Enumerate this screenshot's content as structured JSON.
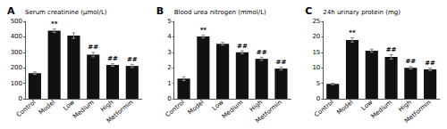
{
  "chart_data": [
    {
      "type": "bar",
      "title": "A",
      "ylabel": "Serum creatinine (μmol/L)",
      "categories": [
        "Control",
        "Model",
        "Low",
        "Medium",
        "High",
        "Metformin"
      ],
      "values": [
        165,
        440,
        408,
        285,
        218,
        212
      ],
      "errors": [
        8,
        12,
        18,
        14,
        8,
        10
      ],
      "annotations": [
        null,
        "**",
        null,
        "##",
        "##",
        "##"
      ],
      "color": "#111111",
      "ylim": [
        0,
        500
      ],
      "yticks": [
        0,
        100,
        200,
        300,
        400,
        500
      ],
      "grid": false
    },
    {
      "type": "bar",
      "title": "B",
      "ylabel": "Blood urea nitrogen (mmol/L)",
      "categories": [
        "Control",
        "Model",
        "Low",
        "Medium",
        "High",
        "Metformin"
      ],
      "values": [
        1.3,
        4.02,
        3.55,
        3.0,
        2.58,
        1.95
      ],
      "errors": [
        0.12,
        0.1,
        0.09,
        0.1,
        0.1,
        0.1
      ],
      "annotations": [
        null,
        "**",
        null,
        "##",
        "##",
        "##"
      ],
      "color": "#111111",
      "ylim": [
        0,
        5
      ],
      "yticks": [
        0,
        1,
        2,
        3,
        4,
        5
      ],
      "grid": false
    },
    {
      "type": "bar",
      "title": "C",
      "ylabel": "24h urinary protein (mg)",
      "categories": [
        "Control",
        "Model",
        "Low",
        "Medium",
        "High",
        "Metformin"
      ],
      "values": [
        4.8,
        19.0,
        15.5,
        13.5,
        10.0,
        9.5
      ],
      "errors": [
        0.25,
        0.7,
        0.5,
        0.7,
        0.4,
        0.4
      ],
      "annotations": [
        null,
        "**",
        null,
        "##",
        "##",
        "##"
      ],
      "color": "#111111",
      "ylim": [
        0,
        25
      ],
      "yticks": [
        0,
        5,
        10,
        15,
        20,
        25
      ],
      "grid": false
    }
  ]
}
